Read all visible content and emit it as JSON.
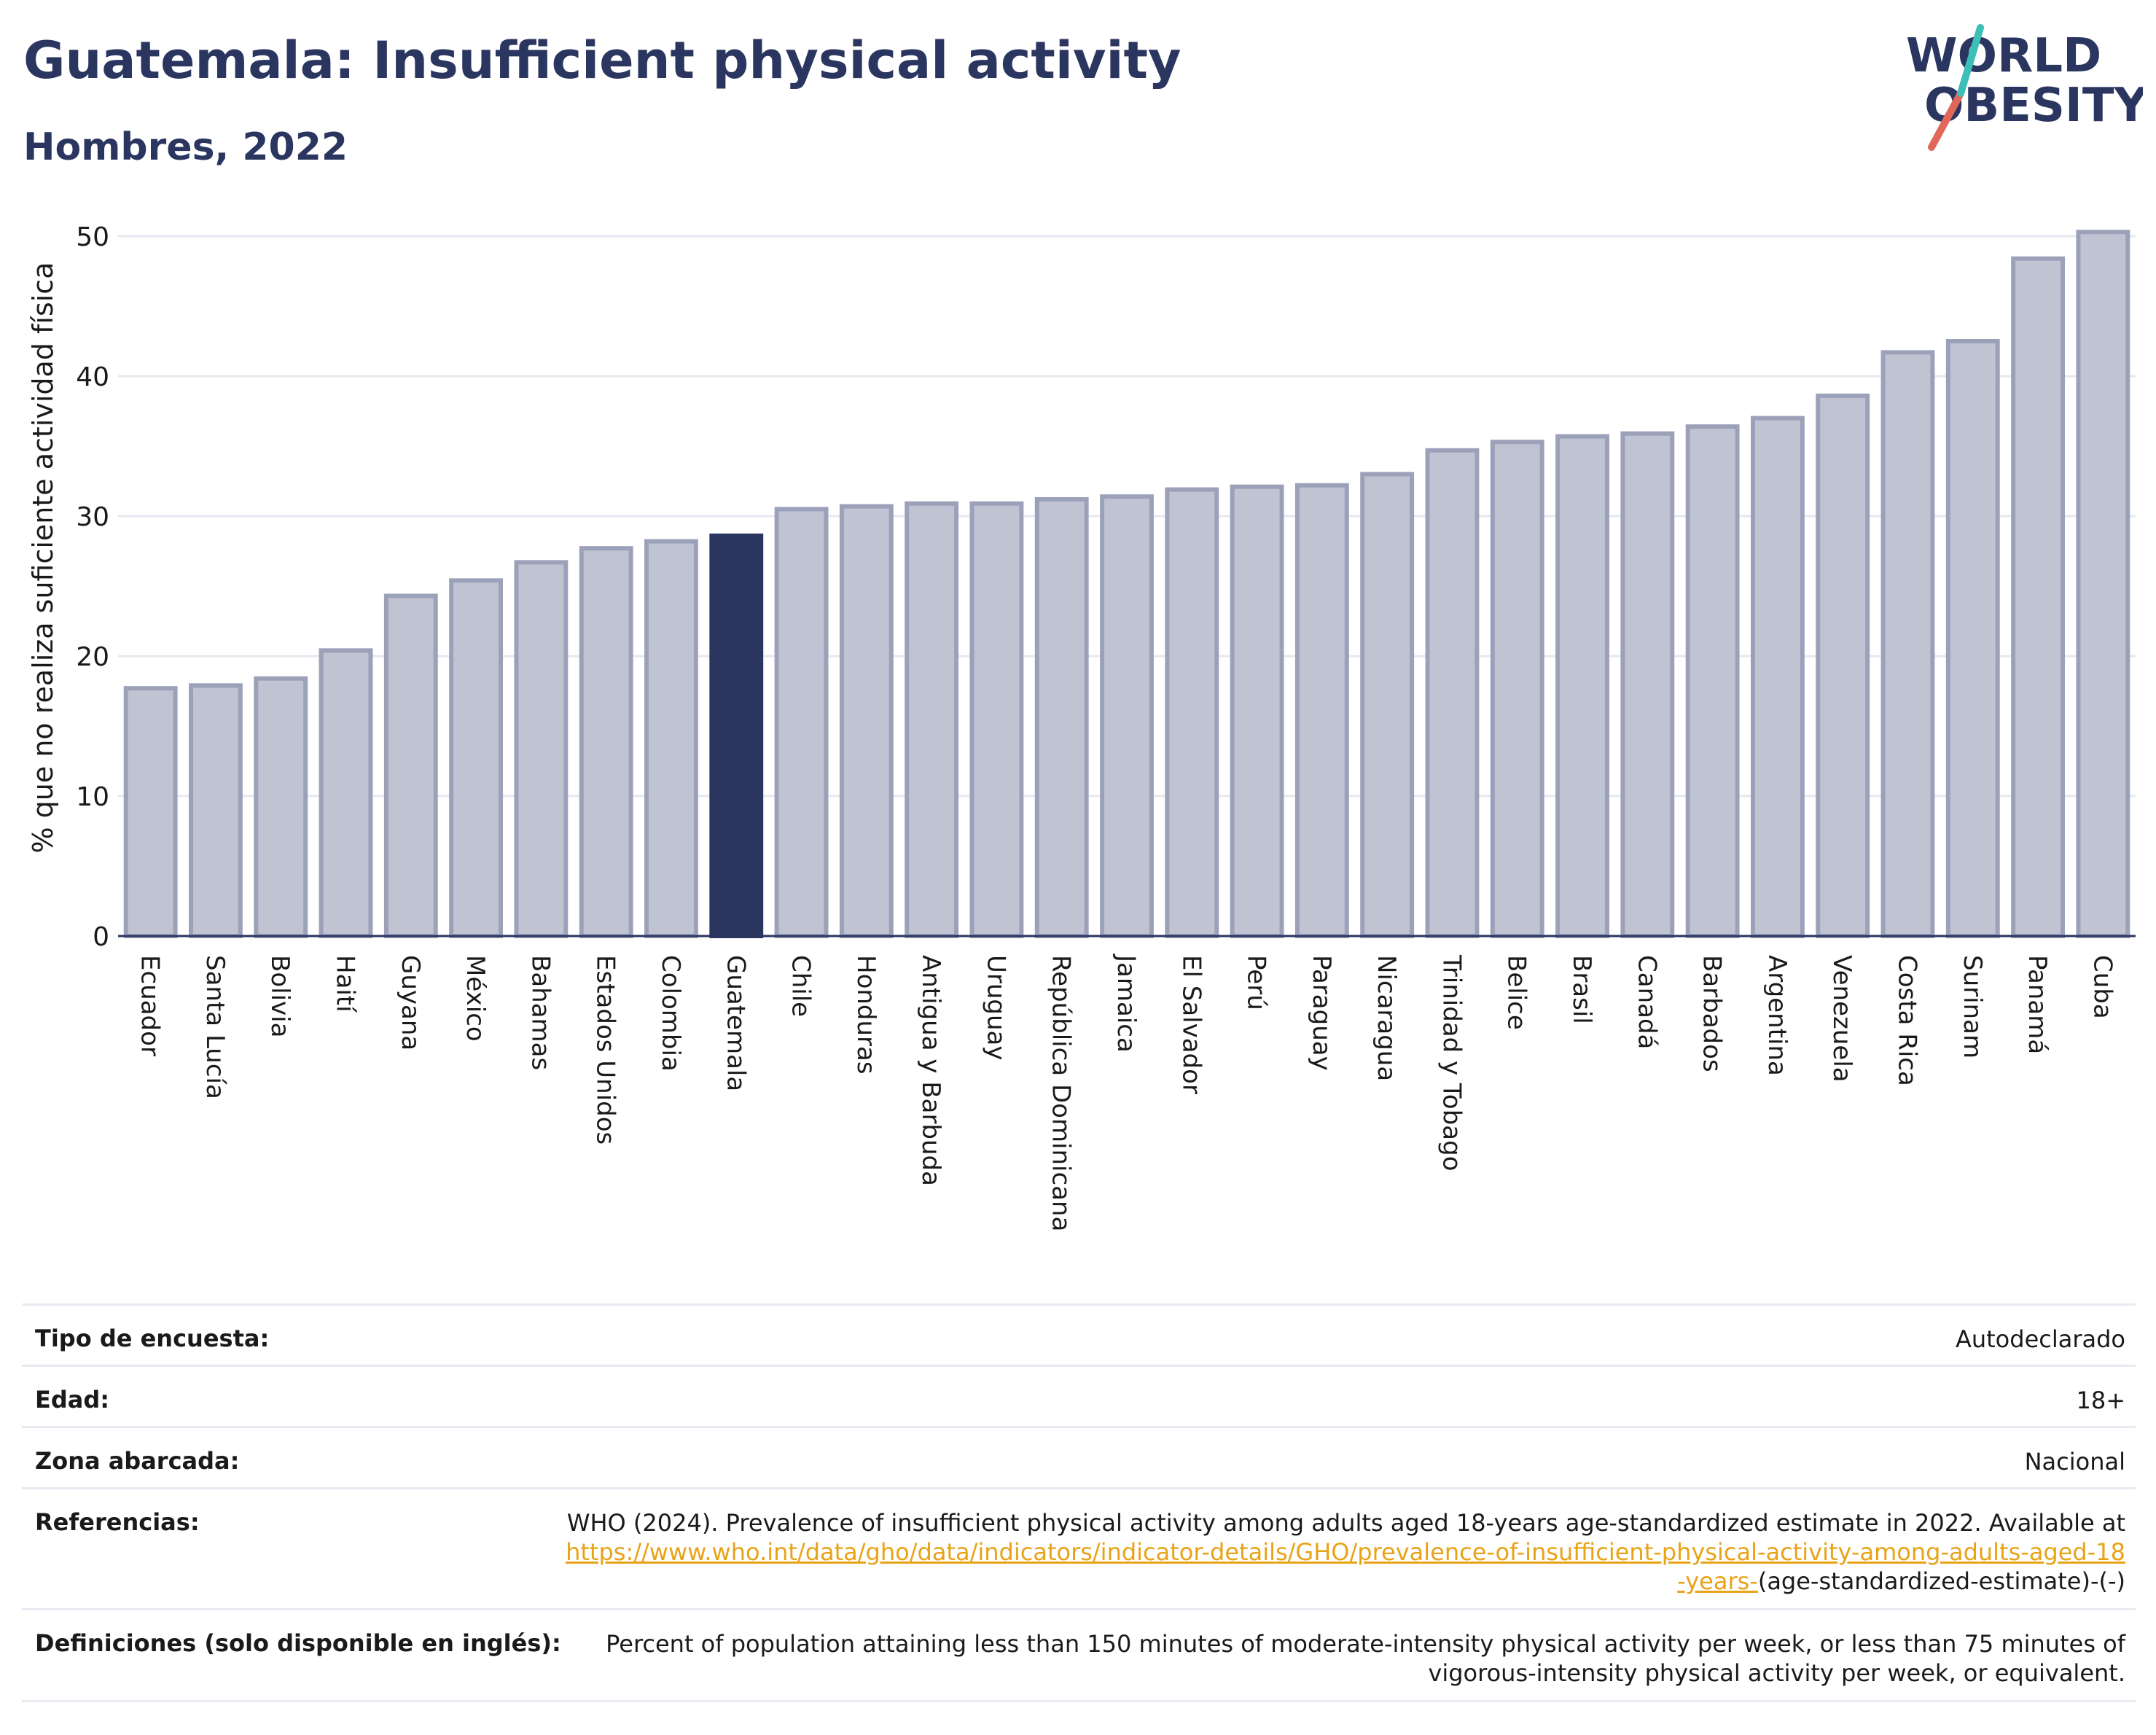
{
  "header": {
    "title": "Guatemala: Insufficient physical activity",
    "subtitle": "Hombres, 2022"
  },
  "logo": {
    "line1": "WORLD",
    "line2": "OBESITY"
  },
  "colors": {
    "title": "#2b3660",
    "highlight_bar": "#2b3660",
    "bar_fill": "#c0c3d1",
    "bar_stroke": "#9ca1ba",
    "accent_red": "#e0675a",
    "accent_teal": "#3bbfb8",
    "link": "#e8a317"
  },
  "chart_data": {
    "type": "bar",
    "title": "Guatemala: Insufficient physical activity",
    "subtitle": "Hombres, 2022",
    "xlabel": "",
    "ylabel": "% que no realiza suficiente actividad física",
    "ylim": [
      0,
      50
    ],
    "yticks": [
      0,
      10,
      20,
      30,
      40,
      50
    ],
    "grid": true,
    "highlight": "Guatemala",
    "categories": [
      "Ecuador",
      "Santa Lucía",
      "Bolivia",
      "Haití",
      "Guyana",
      "México",
      "Bahamas",
      "Estados Unidos",
      "Colombia",
      "Guatemala",
      "Chile",
      "Honduras",
      "Antigua y Barbuda",
      "Uruguay",
      "República Dominicana",
      "Jamaica",
      "El Salvador",
      "Perú",
      "Paraguay",
      "Nicaragua",
      "Trinidad y Tobago",
      "Belice",
      "Brasil",
      "Canadá",
      "Barbados",
      "Argentina",
      "Venezuela",
      "Costa Rica",
      "Surinam",
      "Panamá",
      "Cuba"
    ],
    "values": [
      17.7,
      17.9,
      18.4,
      20.4,
      24.3,
      25.4,
      26.7,
      27.7,
      28.2,
      28.6,
      30.5,
      30.7,
      30.9,
      30.9,
      31.2,
      31.4,
      31.9,
      32.1,
      32.2,
      33.0,
      34.7,
      35.3,
      35.7,
      35.9,
      36.4,
      37.0,
      38.6,
      41.7,
      42.5,
      48.4,
      50.3
    ]
  },
  "meta": {
    "survey": {
      "label": "Tipo de encuesta:",
      "value": "Autodeclarado"
    },
    "age": {
      "label": "Edad:",
      "value": "18+"
    },
    "area": {
      "label": "Zona abarcada:",
      "value": "Nacional"
    },
    "references": {
      "label": "Referencias:",
      "text": "WHO (2024). Prevalence of insufficient physical activity among adults aged 18-years age-standardized estimate in 2022. Available at",
      "link": "https://www.who.int/data/gho/data/indicators/indicator-details/GHO/prevalence-of-insufficient-physical-activity-among-adults-aged-18-years-",
      "suffix": "(age-standardized-estimate)-(-)"
    },
    "definitions": {
      "label": "Definiciones (solo disponible en inglés):",
      "value": "Percent of population attaining less than 150 minutes of moderate-intensity physical activity per week, or less than 75 minutes of vigorous-intensity physical activity per week, or equivalent."
    }
  }
}
